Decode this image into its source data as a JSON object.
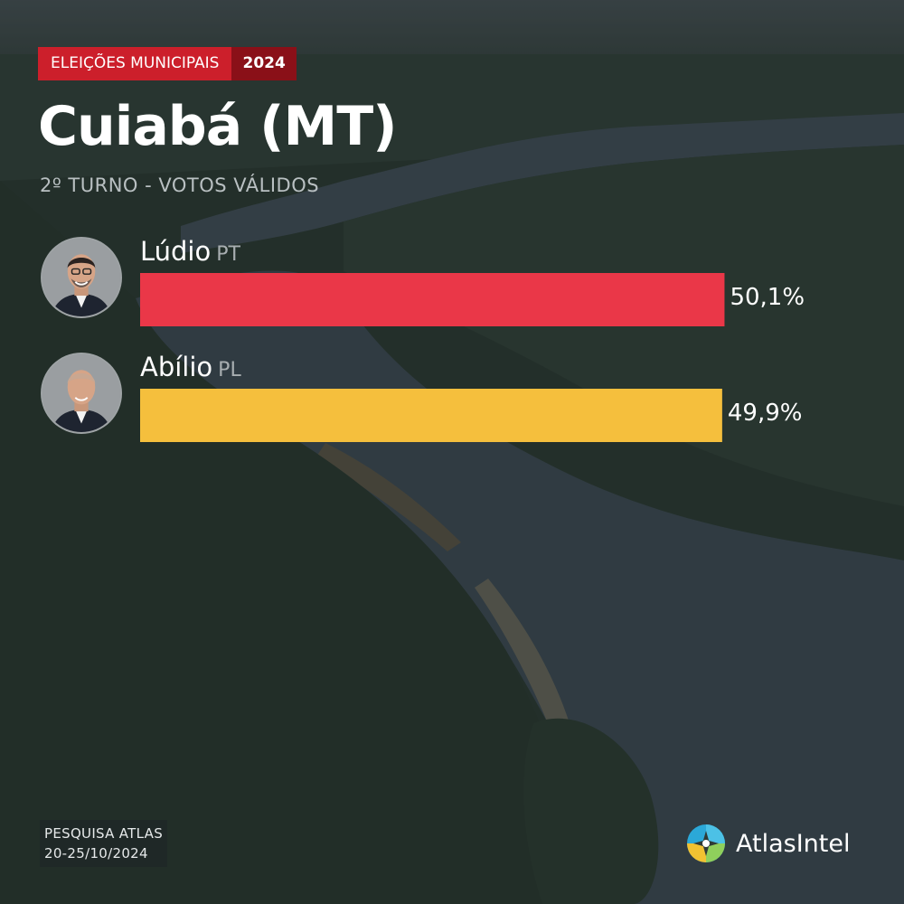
{
  "header": {
    "tag_label": "ELEIÇÕES MUNICIPAIS",
    "tag_year": "2024",
    "title": "Cuiabá (MT)",
    "subtitle": "2º TURNO - VOTOS VÁLIDOS"
  },
  "chart_data": {
    "type": "bar",
    "orientation": "horizontal",
    "title": "Cuiabá (MT)",
    "subtitle": "2º TURNO - VOTOS VÁLIDOS",
    "categories": [
      "Lúdio",
      "Abílio"
    ],
    "parties": [
      "PT",
      "PL"
    ],
    "values": [
      50.1,
      49.9
    ],
    "value_labels": [
      "50,1%",
      "49,9%"
    ],
    "colors": [
      "#ea3748",
      "#f5bf3d"
    ],
    "xlim": [
      0,
      62
    ],
    "grid": false
  },
  "footer": {
    "source_line1": "PESQUISA ATLAS",
    "source_line2": "20-25/10/2024",
    "brand": "AtlasIntel"
  },
  "icons": {
    "brand": "atlasintel-logo-icon",
    "candidate_photo": "candidate-photo"
  }
}
